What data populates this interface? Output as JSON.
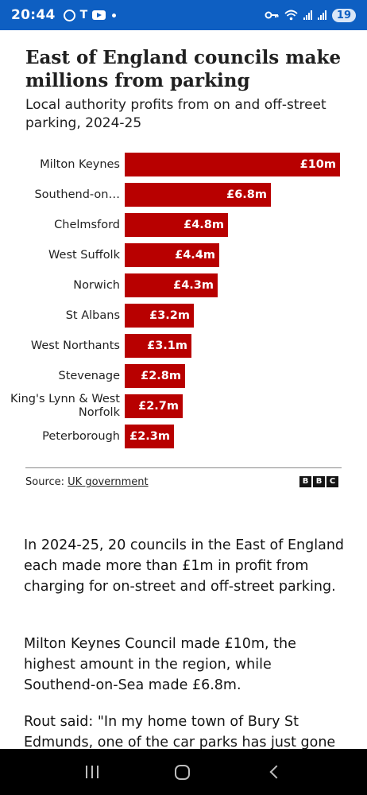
{
  "status_bar": {
    "time": "20:44",
    "battery": "19",
    "icons": [
      "circle-app-icon",
      "tesla-icon",
      "youtube-icon",
      "notification-dot-icon",
      "key-icon",
      "wifi-icon",
      "signal-icon"
    ]
  },
  "chart_data": {
    "type": "bar",
    "orientation": "horizontal",
    "title": "East of England councils make millions from parking",
    "subtitle": "Local authority profits from on and off-street parking, 2024-25",
    "categories": [
      "Milton Keynes",
      "Southend-on…",
      "Chelmsford",
      "West Suffolk",
      "Norwich",
      "St Albans",
      "West Northants",
      "Stevenage",
      "King's Lynn & West Norfolk",
      "Peterborough"
    ],
    "values": [
      10,
      6.8,
      4.8,
      4.4,
      4.3,
      3.2,
      3.1,
      2.8,
      2.7,
      2.3
    ],
    "value_labels": [
      "£10m",
      "£6.8m",
      "£4.8m",
      "£4.4m",
      "£4.3m",
      "£3.2m",
      "£3.1m",
      "£2.8m",
      "£2.7m",
      "£2.3m"
    ],
    "unit": "£m",
    "xlim": [
      0,
      10
    ],
    "bar_color": "#b80000",
    "grid": false,
    "legend": "none"
  },
  "source": {
    "prefix": "Source: ",
    "link": "UK government"
  },
  "logo": [
    "B",
    "B",
    "C"
  ],
  "article": {
    "paragraphs": [
      "In 2024-25, 20 councils in the East of England each made more than £1m in profit from charging for on-street and off-street parking.",
      "Milton Keynes Council made £10m, the highest amount in the region, while Southend-on-Sea made £6.8m.",
      "Rout said: \"In my home town of Bury St Edmunds, one of the car parks has just gone"
    ]
  },
  "colors": {
    "status_bar": "#0e5fc2",
    "bar": "#b80000",
    "nav_bar": "#000000"
  }
}
